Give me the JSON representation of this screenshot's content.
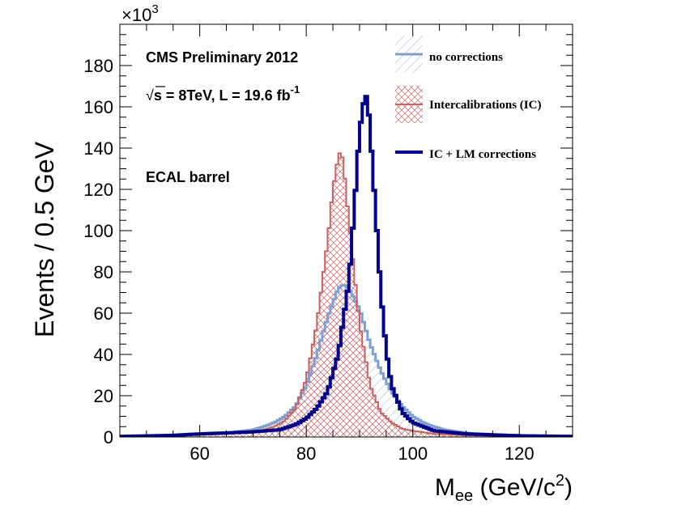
{
  "chart_data": {
    "type": "line",
    "subtype": "step-histogram",
    "xlabel_main": "M",
    "xlabel_sub": "ee",
    "xlabel_rest": " (GeV/c",
    "xlabel_sup": "2",
    "xlabel_close": ")",
    "ylabel": "Events / 0.5 GeV",
    "y_multiplier": "×10",
    "y_multiplier_exp": "3",
    "xlim": [
      45,
      130
    ],
    "ylim": [
      0,
      200
    ],
    "x_ticks": [
      60,
      80,
      100,
      120
    ],
    "y_ticks": [
      0,
      20,
      40,
      60,
      80,
      100,
      120,
      140,
      160,
      180
    ],
    "annotations": {
      "line1": "CMS Preliminary 2012",
      "line2_sqrt": "√",
      "line2_s": "s = 8TeV, L = 19.6 fb",
      "line2_sup": "-1",
      "line3": "ECAL barrel"
    },
    "legend_position": "top-right",
    "series": [
      {
        "name": "no corrections",
        "color": "#7f9fd2",
        "hatch": "diagonal-blue",
        "peak": 86.7,
        "peak_value": 74,
        "x": [
          45,
          55,
          60,
          65,
          70,
          72,
          74,
          76,
          78,
          80,
          82,
          84,
          86,
          87,
          88,
          90,
          92,
          94,
          96,
          98,
          100,
          102,
          104,
          106,
          110,
          115,
          120,
          125,
          130
        ],
        "values": [
          0.3,
          0.8,
          1.5,
          2.0,
          3.5,
          5,
          7,
          10,
          15,
          25,
          40,
          58,
          72,
          74,
          72,
          62,
          45,
          32,
          22,
          15,
          10,
          7,
          5,
          3.5,
          2,
          1.2,
          0.8,
          0.5,
          0.3
        ]
      },
      {
        "name": "Intercalibrations (IC)",
        "color": "#c8615f",
        "hatch": "crosshatch-red",
        "peak": 86.5,
        "peak_value": 139,
        "x": [
          45,
          55,
          60,
          65,
          70,
          72,
          74,
          76,
          78,
          80,
          82,
          84,
          85,
          86,
          86.5,
          87,
          88,
          90,
          92,
          94,
          96,
          98,
          100,
          104,
          110,
          120,
          130
        ],
        "values": [
          0.2,
          0.5,
          1.0,
          1.5,
          2.5,
          3.5,
          5,
          8,
          14,
          28,
          55,
          95,
          120,
          136,
          139,
          132,
          105,
          55,
          25,
          12,
          7,
          4,
          3,
          1.5,
          0.8,
          0.4,
          0.2
        ]
      },
      {
        "name": "IC + LM corrections",
        "color": "#00008b",
        "hatch": "none",
        "peak": 91.2,
        "peak_value": 166,
        "x": [
          45,
          55,
          60,
          65,
          70,
          75,
          78,
          80,
          82,
          84,
          86,
          88,
          89,
          90,
          91,
          91.5,
          92,
          93,
          94,
          95,
          96,
          98,
          100,
          104,
          110,
          120,
          130
        ],
        "values": [
          0.3,
          0.8,
          1.5,
          2.0,
          2.5,
          3.5,
          6,
          9,
          14,
          22,
          40,
          75,
          110,
          148,
          166,
          164,
          148,
          110,
          70,
          42,
          25,
          12,
          7,
          3,
          1.5,
          0.6,
          0.3
        ]
      }
    ]
  }
}
